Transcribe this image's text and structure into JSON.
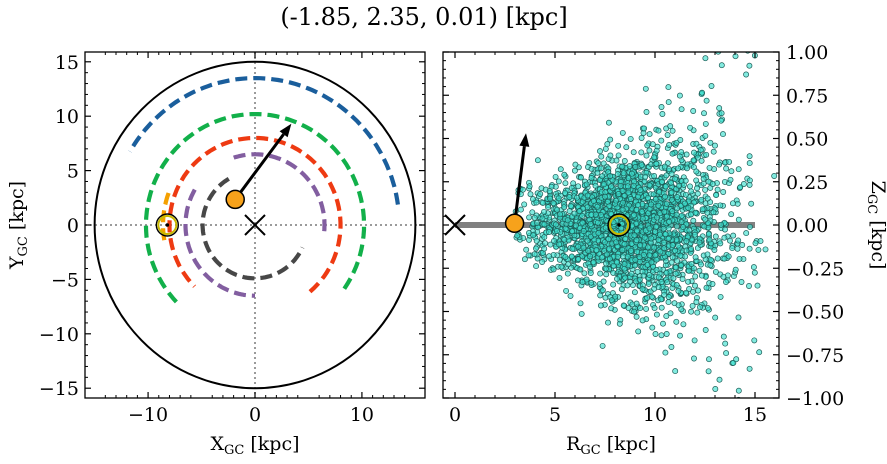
{
  "title": "(-1.85, 2.35, 0.01) [kpc]",
  "colors": {
    "arm_blue": "#1a5e9c",
    "arm_green": "#12b04a",
    "arm_red": "#ee3a12",
    "arm_purple": "#825ea0",
    "arm_gray": "#474747",
    "arm_orange": "#f5a000",
    "object_marker": "#f7a21b",
    "sun_marker": "#c9b800",
    "stars": "#3fe0cf",
    "disk": "#808080",
    "guide": "#7a7a7a"
  },
  "chart_data": [
    {
      "type": "line",
      "panel": "face-on",
      "xlabel": "X",
      "xlabel_sub": "GC",
      "xlabel_unit": " [kpc]",
      "ylabel": "Y",
      "ylabel_sub": "GC",
      "ylabel_unit": " [kpc]",
      "xlim": [
        -15.9,
        15.9
      ],
      "ylim": [
        -15.9,
        15.9
      ],
      "xticks": [
        -10,
        0,
        10
      ],
      "yticks": [
        -15,
        -10,
        -5,
        0,
        5,
        10,
        15
      ],
      "xtick_labels": [
        "−10",
        "0",
        "10"
      ],
      "ytick_labels": [
        "−15",
        "−10",
        "−5",
        "0",
        "5",
        "10",
        "15"
      ],
      "galaxy_edge_radius": 15,
      "galactic_center": [
        0,
        0
      ],
      "sun_position": [
        -8.2,
        0
      ],
      "object_position": [
        -1.85,
        2.35
      ],
      "velocity_arrow_tip": [
        3.4,
        9.3
      ],
      "arms": [
        {
          "color_key": "arm_blue",
          "radius": 13.5,
          "theta_deg": [
            8,
            150
          ]
        },
        {
          "color_key": "arm_green",
          "radius": 10.2,
          "theta_deg": [
            -35,
            225
          ]
        },
        {
          "color_key": "arm_red",
          "radius": 8.0,
          "theta_deg": [
            -50,
            225
          ]
        },
        {
          "color_key": "arm_purple",
          "radius": 6.5,
          "theta_deg": [
            -5,
            110
          ]
        },
        {
          "color_key": "arm_purple",
          "radius": 6.5,
          "theta_deg": [
            150,
            270
          ]
        },
        {
          "color_key": "arm_gray",
          "radius": 4.9,
          "theta_deg": [
            120,
            335
          ]
        },
        {
          "color_key": "arm_orange",
          "radius": 8.6,
          "theta_deg": [
            160,
            190
          ]
        }
      ]
    },
    {
      "type": "scatter",
      "panel": "edge-on",
      "xlabel": "R",
      "xlabel_sub": "GC",
      "xlabel_unit": " [kpc]",
      "ylabel": "Z",
      "ylabel_sub": "GC",
      "ylabel_unit": " [kpc]",
      "xlim": [
        -0.6,
        16.2
      ],
      "ylim": [
        -1.0,
        1.0
      ],
      "xticks": [
        0,
        5,
        10,
        15
      ],
      "yticks": [
        -1.0,
        -0.75,
        -0.5,
        -0.25,
        0.0,
        0.25,
        0.5,
        0.75,
        1.0
      ],
      "xtick_labels": [
        "0",
        "5",
        "10",
        "15"
      ],
      "ytick_labels": [
        "−1.00",
        "−0.75",
        "−0.50",
        "−0.25",
        "0.00",
        "0.25",
        "0.50",
        "0.75",
        "1.00"
      ],
      "disk_segment": {
        "r": [
          0,
          15
        ],
        "z": 0
      },
      "galactic_center": [
        0,
        0
      ],
      "sun_position": [
        8.2,
        0
      ],
      "object_position": [
        2.98,
        0.01
      ],
      "velocity_arrow_tip": [
        3.55,
        0.53
      ],
      "star_cloud": {
        "center_r": 8.7,
        "r_spread": 2.3,
        "center_z": 0.0,
        "z_spread": 0.17,
        "count": 2300,
        "outliers": 260
      }
    }
  ]
}
